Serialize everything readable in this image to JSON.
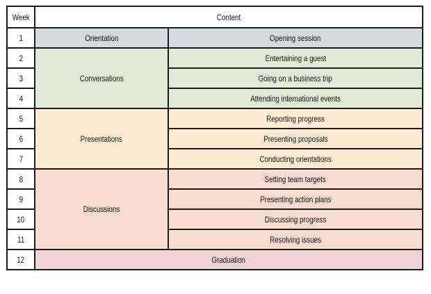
{
  "header": {
    "week": "Week",
    "content": "Content"
  },
  "rows": {
    "orientation": {
      "week": "1",
      "section": "Orientation",
      "topic": "Opening session"
    },
    "conversations": {
      "section": "Conversations",
      "weeks": [
        "2",
        "3",
        "4"
      ],
      "topics": [
        "Entertaining a guest",
        "Going on a business trip",
        "Attending international events"
      ]
    },
    "presentations": {
      "section": "Presentations",
      "weeks": [
        "5",
        "6",
        "7"
      ],
      "topics": [
        "Reporting progress",
        "Presenting proposals",
        "Conducting orientations"
      ]
    },
    "discussions": {
      "section": "Discussions",
      "weeks": [
        "8",
        "9",
        "10",
        "11"
      ],
      "topics": [
        "Setting team targets",
        "Presenting action plans",
        "Discussing progress",
        "Resolving issues"
      ]
    },
    "graduation": {
      "week": "12",
      "label": "Graduation"
    }
  },
  "colors": {
    "orientation": "#d5dbe1",
    "conversations": "#e2ead8",
    "presentations": "#fcebd2",
    "discussions": "#f8dcd0",
    "graduation": "#f0d3d7"
  }
}
